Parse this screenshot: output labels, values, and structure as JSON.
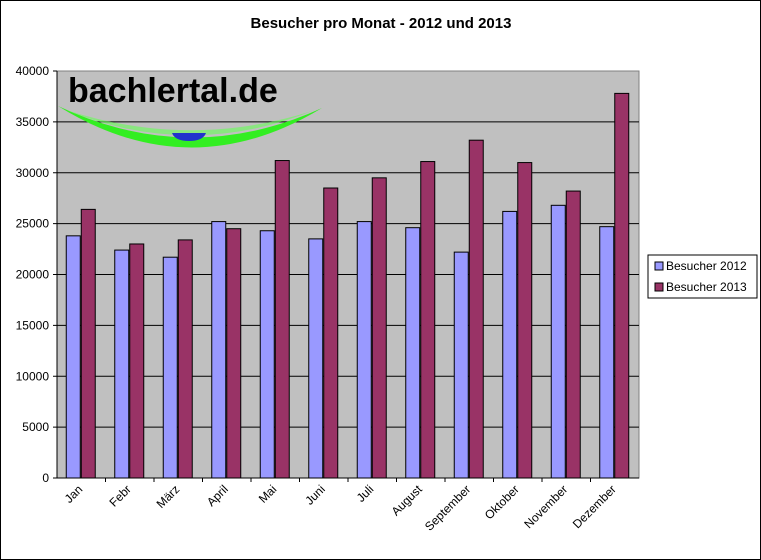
{
  "chart_data": {
    "type": "bar",
    "title": "Besucher pro Monat - 2012 und 2013",
    "xlabel": "",
    "ylabel": "",
    "ylim": [
      0,
      40000
    ],
    "yticks": [
      0,
      5000,
      10000,
      15000,
      20000,
      25000,
      30000,
      35000,
      40000
    ],
    "grid": true,
    "legend_position": "right",
    "categories": [
      "Jan",
      "Febr",
      "März",
      "April",
      "Mai",
      "Juni",
      "Juli",
      "August",
      "September",
      "Oktober",
      "November",
      "Dezember"
    ],
    "series": [
      {
        "name": "Besucher 2012",
        "color": "#9999ff",
        "values": [
          23800,
          22400,
          21700,
          25200,
          24300,
          23500,
          25200,
          24600,
          22200,
          26200,
          26800,
          24700
        ]
      },
      {
        "name": "Besucher 2013",
        "color": "#993366",
        "values": [
          26400,
          23000,
          23400,
          24500,
          31200,
          28500,
          29500,
          31100,
          33200,
          31000,
          28200,
          37800
        ]
      }
    ]
  },
  "logo": {
    "text": "bachlertal.de",
    "swoosh_color": "#33ee22",
    "dot_color": "#2233cc"
  },
  "colors": {
    "plot_background": "#c0c0c0",
    "gridline": "#000000"
  }
}
